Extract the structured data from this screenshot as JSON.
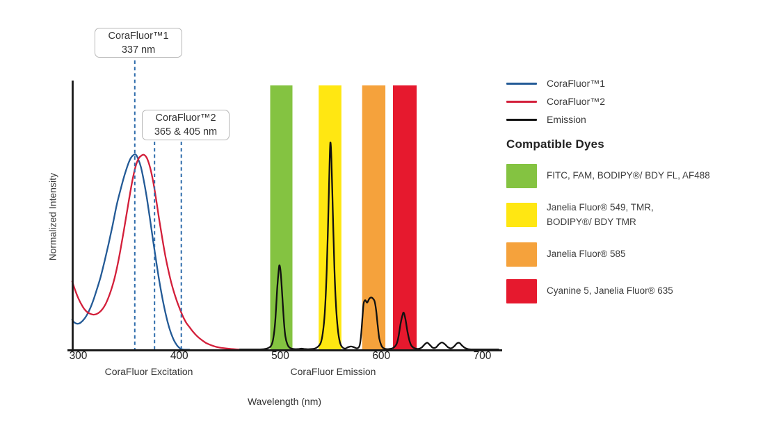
{
  "figure": {
    "y_axis_label": "Normalized Intensity",
    "x_axis_title": "Wavelength (nm)",
    "region_labels": {
      "excitation": "CoraFluor Excitation",
      "emission": "CoraFluor Emission"
    },
    "annotations": [
      {
        "line1": "CoraFluor™1",
        "line2": "337 nm"
      },
      {
        "line1": "CoraFluor™2",
        "line2": "365 & 405 nm"
      }
    ]
  },
  "legend": {
    "items": [
      {
        "label": "CoraFluor™1",
        "color": "#235a96"
      },
      {
        "label": "CoraFluor™2",
        "color": "#d31f3a"
      },
      {
        "label": "Emission",
        "color": "#111111"
      }
    ]
  },
  "compatible_dyes": {
    "title": "Compatible Dyes",
    "items": [
      {
        "color": "#84c341",
        "label": "FITC, FAM, BODIPY®/ BDY FL, AF488"
      },
      {
        "color": "#ffe712",
        "label": "Janelia Fluor® 549, TMR,\nBODIPY®/ BDY TMR"
      },
      {
        "color": "#f5a23c",
        "label": "Janelia Fluor® 585"
      },
      {
        "color": "#e6192e",
        "label": "Cyanine 5, Janelia Fluor® 635"
      }
    ]
  },
  "chart_data": {
    "type": "line",
    "title": "CoraFluor excitation and emission spectra with compatible dye windows",
    "xlabel": "Wavelength (nm)",
    "ylabel": "Normalized Intensity",
    "xlim": [
      294,
      720
    ],
    "ylim": [
      0,
      1
    ],
    "grid": false,
    "x_ticks": [
      300,
      400,
      500,
      600,
      700
    ],
    "marker_lines_nm": [
      356,
      375.5,
      402
    ],
    "marker_line_color": "#2e6cab",
    "bands": [
      {
        "name": "green-window",
        "range_nm": [
          490,
          512
        ],
        "color": "#84c341"
      },
      {
        "name": "yellow-window",
        "range_nm": [
          538,
          560.5
        ],
        "color": "#ffe712"
      },
      {
        "name": "orange-window",
        "range_nm": [
          581,
          604
        ],
        "color": "#f5a23c"
      },
      {
        "name": "red-window",
        "range_nm": [
          611.5,
          635
        ],
        "color": "#e6192e"
      }
    ],
    "series": [
      {
        "name": "CoraFluor™1",
        "color": "#235a96",
        "points": [
          [
            294,
            0.112
          ],
          [
            296,
            0.102
          ],
          [
            299,
            0.097
          ],
          [
            302,
            0.1
          ],
          [
            306,
            0.115
          ],
          [
            310,
            0.14
          ],
          [
            314,
            0.175
          ],
          [
            318,
            0.22
          ],
          [
            322,
            0.27
          ],
          [
            326,
            0.33
          ],
          [
            330,
            0.395
          ],
          [
            334,
            0.465
          ],
          [
            338,
            0.54
          ],
          [
            342,
            0.6
          ],
          [
            346,
            0.655
          ],
          [
            350,
            0.7
          ],
          [
            353,
            0.722
          ],
          [
            356.5,
            0.73
          ],
          [
            359,
            0.716
          ],
          [
            362,
            0.683
          ],
          [
            365,
            0.63
          ],
          [
            368,
            0.565
          ],
          [
            371,
            0.49
          ],
          [
            374,
            0.41
          ],
          [
            377,
            0.335
          ],
          [
            380,
            0.262
          ],
          [
            383,
            0.198
          ],
          [
            386,
            0.143
          ],
          [
            389,
            0.096
          ],
          [
            392,
            0.06
          ],
          [
            395,
            0.033
          ],
          [
            398,
            0.015
          ],
          [
            400,
            0.007
          ],
          [
            402,
            0.002
          ],
          [
            405,
            0.0
          ],
          [
            410,
            0.0
          ]
        ]
      },
      {
        "name": "CoraFluor™2",
        "color": "#d31f3a",
        "points": [
          [
            294,
            0.255
          ],
          [
            297,
            0.222
          ],
          [
            300,
            0.193
          ],
          [
            303,
            0.17
          ],
          [
            306,
            0.152
          ],
          [
            309,
            0.14
          ],
          [
            312,
            0.134
          ],
          [
            315,
            0.131
          ],
          [
            318,
            0.133
          ],
          [
            321,
            0.14
          ],
          [
            324,
            0.152
          ],
          [
            327,
            0.17
          ],
          [
            330,
            0.196
          ],
          [
            333,
            0.228
          ],
          [
            336,
            0.268
          ],
          [
            339,
            0.318
          ],
          [
            342,
            0.378
          ],
          [
            345,
            0.443
          ],
          [
            348,
            0.51
          ],
          [
            351,
            0.578
          ],
          [
            354,
            0.64
          ],
          [
            357,
            0.688
          ],
          [
            360,
            0.716
          ],
          [
            363,
            0.727
          ],
          [
            365.5,
            0.728
          ],
          [
            368,
            0.716
          ],
          [
            371,
            0.683
          ],
          [
            374,
            0.632
          ],
          [
            377,
            0.565
          ],
          [
            380,
            0.49
          ],
          [
            383,
            0.42
          ],
          [
            386,
            0.355
          ],
          [
            389,
            0.3
          ],
          [
            392,
            0.252
          ],
          [
            395,
            0.212
          ],
          [
            398,
            0.178
          ],
          [
            401,
            0.148
          ],
          [
            404,
            0.121
          ],
          [
            407,
            0.1
          ],
          [
            410,
            0.085
          ],
          [
            413,
            0.07
          ],
          [
            416,
            0.057
          ],
          [
            419,
            0.046
          ],
          [
            423,
            0.034
          ],
          [
            427,
            0.024
          ],
          [
            432,
            0.016
          ],
          [
            437,
            0.01
          ],
          [
            443,
            0.006
          ],
          [
            450,
            0.003
          ],
          [
            457,
            0.001
          ],
          [
            465,
            0.0
          ]
        ]
      },
      {
        "name": "Emission",
        "color": "#111111",
        "points": [
          [
            460,
            0.001
          ],
          [
            478,
            0.001
          ],
          [
            484,
            0.002
          ],
          [
            488,
            0.006
          ],
          [
            491,
            0.015
          ],
          [
            493,
            0.04
          ],
          [
            495,
            0.105
          ],
          [
            497,
            0.23
          ],
          [
            498.5,
            0.3
          ],
          [
            499.3,
            0.315
          ],
          [
            500.5,
            0.285
          ],
          [
            502,
            0.2
          ],
          [
            503.5,
            0.11
          ],
          [
            505,
            0.05
          ],
          [
            507,
            0.02
          ],
          [
            509,
            0.008
          ],
          [
            512,
            0.003
          ],
          [
            517,
            0.002
          ],
          [
            521,
            0.004
          ],
          [
            525,
            0.002
          ],
          [
            530,
            0.002
          ],
          [
            534,
            0.004
          ],
          [
            537,
            0.01
          ],
          [
            540,
            0.025
          ],
          [
            542,
            0.06
          ],
          [
            544,
            0.135
          ],
          [
            546,
            0.3
          ],
          [
            547.5,
            0.5
          ],
          [
            548.8,
            0.7
          ],
          [
            549.6,
            0.775
          ],
          [
            550.6,
            0.715
          ],
          [
            552,
            0.52
          ],
          [
            553.5,
            0.315
          ],
          [
            555,
            0.175
          ],
          [
            557,
            0.075
          ],
          [
            559,
            0.028
          ],
          [
            561,
            0.011
          ],
          [
            564,
            0.004
          ],
          [
            567,
            0.009
          ],
          [
            570,
            0.012
          ],
          [
            573,
            0.009
          ],
          [
            576,
            0.005
          ],
          [
            578.5,
            0.015
          ],
          [
            580,
            0.055
          ],
          [
            581.5,
            0.13
          ],
          [
            582.5,
            0.172
          ],
          [
            584,
            0.185
          ],
          [
            586,
            0.176
          ],
          [
            588,
            0.19
          ],
          [
            590,
            0.195
          ],
          [
            592,
            0.19
          ],
          [
            593.5,
            0.179
          ],
          [
            595,
            0.143
          ],
          [
            596.5,
            0.088
          ],
          [
            598,
            0.042
          ],
          [
            600,
            0.016
          ],
          [
            602,
            0.006
          ],
          [
            605,
            0.002
          ],
          [
            609,
            0.003
          ],
          [
            612,
            0.007
          ],
          [
            615,
            0.02
          ],
          [
            617,
            0.048
          ],
          [
            619,
            0.095
          ],
          [
            621,
            0.13
          ],
          [
            622.3,
            0.138
          ],
          [
            624,
            0.112
          ],
          [
            626,
            0.066
          ],
          [
            628,
            0.032
          ],
          [
            630,
            0.014
          ],
          [
            633,
            0.005
          ],
          [
            637,
            0.003
          ],
          [
            640,
            0.008
          ],
          [
            643,
            0.02
          ],
          [
            645.5,
            0.026
          ],
          [
            648,
            0.018
          ],
          [
            651,
            0.007
          ],
          [
            654,
            0.008
          ],
          [
            657,
            0.02
          ],
          [
            660,
            0.027
          ],
          [
            663,
            0.02
          ],
          [
            666,
            0.009
          ],
          [
            669,
            0.005
          ],
          [
            672,
            0.012
          ],
          [
            675,
            0.024
          ],
          [
            677.5,
            0.025
          ],
          [
            680,
            0.015
          ],
          [
            683,
            0.006
          ],
          [
            686,
            0.002
          ],
          [
            690,
            0.001
          ],
          [
            700,
            0.001
          ],
          [
            716,
            0.001
          ]
        ]
      }
    ],
    "emission_peaks_nm": [
      499,
      549.6,
      590,
      622
    ],
    "legend_position": "right"
  }
}
